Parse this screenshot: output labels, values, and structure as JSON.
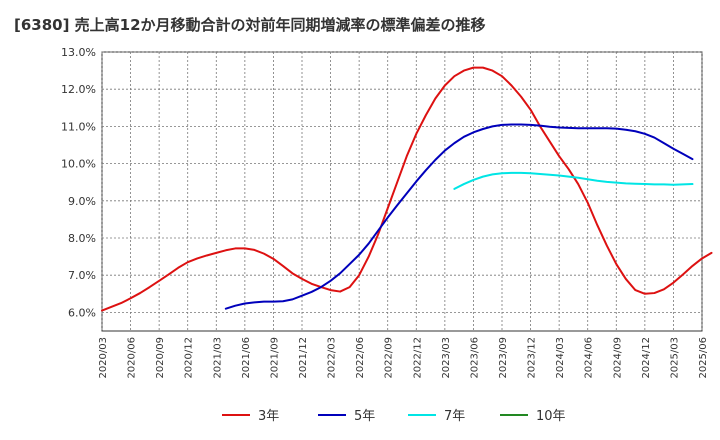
{
  "chart_data": {
    "type": "line",
    "title": "[6380]  売上高12か月移動合計の対前年同期増減率の標準偏差の推移",
    "xlabel": "",
    "ylabel": "",
    "ylim": [
      5.5,
      13.0
    ],
    "y_ticks": [
      "6.0%",
      "7.0%",
      "8.0%",
      "9.0%",
      "10.0%",
      "11.0%",
      "12.0%",
      "13.0%"
    ],
    "y_tick_values": [
      6.0,
      7.0,
      8.0,
      9.0,
      10.0,
      11.0,
      12.0,
      13.0
    ],
    "x_ticks": [
      "2020/03",
      "2020/06",
      "2020/09",
      "2020/12",
      "2021/03",
      "2021/06",
      "2021/09",
      "2021/12",
      "2022/03",
      "2022/06",
      "2022/09",
      "2022/12",
      "2023/03",
      "2023/06",
      "2023/09",
      "2023/12",
      "2024/03",
      "2024/06",
      "2024/09",
      "2024/12",
      "2025/03",
      "2025/06"
    ],
    "grid": true,
    "legend_position": "bottom",
    "series": [
      {
        "name": "3年",
        "color": "#dd1111",
        "points": [
          [
            "2020/03",
            6.05
          ],
          [
            "2020/04",
            6.15
          ],
          [
            "2020/05",
            6.25
          ],
          [
            "2020/06",
            6.38
          ],
          [
            "2020/07",
            6.52
          ],
          [
            "2020/08",
            6.68
          ],
          [
            "2020/09",
            6.85
          ],
          [
            "2020/10",
            7.02
          ],
          [
            "2020/11",
            7.2
          ],
          [
            "2020/12",
            7.35
          ],
          [
            "2021/01",
            7.45
          ],
          [
            "2021/02",
            7.53
          ],
          [
            "2021/03",
            7.6
          ],
          [
            "2021/04",
            7.67
          ],
          [
            "2021/05",
            7.72
          ],
          [
            "2021/06",
            7.72
          ],
          [
            "2021/07",
            7.68
          ],
          [
            "2021/08",
            7.58
          ],
          [
            "2021/09",
            7.44
          ],
          [
            "2021/10",
            7.25
          ],
          [
            "2021/11",
            7.05
          ],
          [
            "2021/12",
            6.9
          ],
          [
            "2022/01",
            6.77
          ],
          [
            "2022/02",
            6.68
          ],
          [
            "2022/03",
            6.6
          ],
          [
            "2022/04",
            6.56
          ],
          [
            "2022/05",
            6.68
          ],
          [
            "2022/06",
            7.0
          ],
          [
            "2022/07",
            7.5
          ],
          [
            "2022/08",
            8.1
          ],
          [
            "2022/09",
            8.8
          ],
          [
            "2022/10",
            9.5
          ],
          [
            "2022/11",
            10.2
          ],
          [
            "2022/12",
            10.8
          ],
          [
            "2023/01",
            11.3
          ],
          [
            "2023/02",
            11.75
          ],
          [
            "2023/03",
            12.1
          ],
          [
            "2023/04",
            12.35
          ],
          [
            "2023/05",
            12.5
          ],
          [
            "2023/06",
            12.58
          ],
          [
            "2023/07",
            12.58
          ],
          [
            "2023/08",
            12.5
          ],
          [
            "2023/09",
            12.35
          ],
          [
            "2023/10",
            12.1
          ],
          [
            "2023/11",
            11.8
          ],
          [
            "2023/12",
            11.45
          ],
          [
            "2024/01",
            11.0
          ],
          [
            "2024/02",
            10.6
          ],
          [
            "2024/03",
            10.2
          ],
          [
            "2024/04",
            9.85
          ],
          [
            "2024/05",
            9.45
          ],
          [
            "2024/06",
            8.95
          ],
          [
            "2024/07",
            8.35
          ],
          [
            "2024/08",
            7.8
          ],
          [
            "2024/09",
            7.3
          ],
          [
            "2024/10",
            6.9
          ],
          [
            "2024/11",
            6.6
          ],
          [
            "2024/12",
            6.5
          ],
          [
            "2025/01",
            6.52
          ],
          [
            "2025/02",
            6.62
          ],
          [
            "2025/03",
            6.8
          ],
          [
            "2025/04",
            7.02
          ],
          [
            "2025/05",
            7.25
          ],
          [
            "2025/06",
            7.45
          ],
          [
            "2025/07",
            7.6
          ]
        ]
      },
      {
        "name": "5年",
        "color": "#0000bb",
        "points": [
          [
            "2021/04",
            6.1
          ],
          [
            "2021/05",
            6.18
          ],
          [
            "2021/06",
            6.24
          ],
          [
            "2021/07",
            6.27
          ],
          [
            "2021/08",
            6.29
          ],
          [
            "2021/09",
            6.29
          ],
          [
            "2021/10",
            6.3
          ],
          [
            "2021/11",
            6.35
          ],
          [
            "2021/12",
            6.45
          ],
          [
            "2022/01",
            6.55
          ],
          [
            "2022/02",
            6.68
          ],
          [
            "2022/03",
            6.85
          ],
          [
            "2022/04",
            7.05
          ],
          [
            "2022/05",
            7.3
          ],
          [
            "2022/06",
            7.55
          ],
          [
            "2022/07",
            7.85
          ],
          [
            "2022/08",
            8.2
          ],
          [
            "2022/09",
            8.55
          ],
          [
            "2022/10",
            8.88
          ],
          [
            "2022/11",
            9.2
          ],
          [
            "2022/12",
            9.52
          ],
          [
            "2023/01",
            9.82
          ],
          [
            "2023/02",
            10.1
          ],
          [
            "2023/03",
            10.35
          ],
          [
            "2023/04",
            10.55
          ],
          [
            "2023/05",
            10.72
          ],
          [
            "2023/06",
            10.84
          ],
          [
            "2023/07",
            10.93
          ],
          [
            "2023/08",
            11.0
          ],
          [
            "2023/09",
            11.04
          ],
          [
            "2023/10",
            11.05
          ],
          [
            "2023/11",
            11.05
          ],
          [
            "2023/12",
            11.04
          ],
          [
            "2024/01",
            11.02
          ],
          [
            "2024/02",
            10.99
          ],
          [
            "2024/03",
            10.97
          ],
          [
            "2024/04",
            10.96
          ],
          [
            "2024/05",
            10.95
          ],
          [
            "2024/06",
            10.95
          ],
          [
            "2024/07",
            10.95
          ],
          [
            "2024/08",
            10.95
          ],
          [
            "2024/09",
            10.94
          ],
          [
            "2024/10",
            10.91
          ],
          [
            "2024/11",
            10.87
          ],
          [
            "2024/12",
            10.8
          ],
          [
            "2025/01",
            10.7
          ],
          [
            "2025/02",
            10.55
          ],
          [
            "2025/03",
            10.4
          ],
          [
            "2025/04",
            10.26
          ],
          [
            "2025/05",
            10.12
          ]
        ]
      },
      {
        "name": "7年",
        "color": "#00e5e5",
        "points": [
          [
            "2023/04",
            9.32
          ],
          [
            "2023/05",
            9.45
          ],
          [
            "2023/06",
            9.56
          ],
          [
            "2023/07",
            9.65
          ],
          [
            "2023/08",
            9.71
          ],
          [
            "2023/09",
            9.74
          ],
          [
            "2023/10",
            9.75
          ],
          [
            "2023/11",
            9.75
          ],
          [
            "2023/12",
            9.74
          ],
          [
            "2024/01",
            9.72
          ],
          [
            "2024/02",
            9.7
          ],
          [
            "2024/03",
            9.68
          ],
          [
            "2024/04",
            9.65
          ],
          [
            "2024/05",
            9.62
          ],
          [
            "2024/06",
            9.58
          ],
          [
            "2024/07",
            9.54
          ],
          [
            "2024/08",
            9.51
          ],
          [
            "2024/09",
            9.49
          ],
          [
            "2024/10",
            9.47
          ],
          [
            "2024/11",
            9.46
          ],
          [
            "2024/12",
            9.45
          ],
          [
            "2025/01",
            9.44
          ],
          [
            "2025/02",
            9.44
          ],
          [
            "2025/03",
            9.43
          ],
          [
            "2025/04",
            9.44
          ],
          [
            "2025/05",
            9.45
          ]
        ]
      },
      {
        "name": "10年",
        "color": "#228822",
        "points": []
      }
    ]
  }
}
